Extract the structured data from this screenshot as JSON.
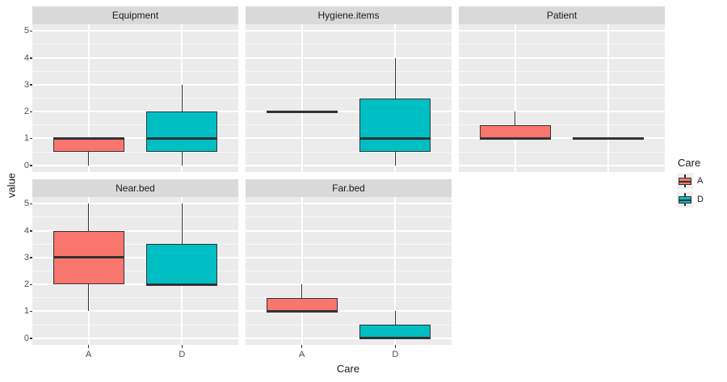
{
  "chart_data": {
    "type": "boxplot",
    "faceted": true,
    "xlabel": "Care",
    "ylabel": "value",
    "x_categories": [
      "A",
      "D"
    ],
    "y_ticks": [
      0,
      1,
      2,
      3,
      4,
      5
    ],
    "y_range": [
      -0.25,
      5.25
    ],
    "grid": "major-and-minor-horizontal, major-vertical-at-categories",
    "legend": {
      "title": "Care",
      "position": "right",
      "entries": [
        {
          "label": "A",
          "color": "#F8766D"
        },
        {
          "label": "D",
          "color": "#00BFC4"
        }
      ]
    },
    "facets": [
      {
        "name": "Equipment",
        "row": 0,
        "col": 0,
        "boxes": [
          {
            "group": "A",
            "min": 0,
            "q1": 0.5,
            "median": 1,
            "q3": 1,
            "max": 1
          },
          {
            "group": "D",
            "min": 0,
            "q1": 0.5,
            "median": 1,
            "q3": 2,
            "max": 3
          }
        ]
      },
      {
        "name": "Hygiene.items",
        "row": 0,
        "col": 1,
        "boxes": [
          {
            "group": "A",
            "min": 2,
            "q1": 2,
            "median": 2,
            "q3": 2,
            "max": 2
          },
          {
            "group": "D",
            "min": 0,
            "q1": 0.5,
            "median": 1,
            "q3": 2.5,
            "max": 4
          }
        ]
      },
      {
        "name": "Patient",
        "row": 0,
        "col": 2,
        "boxes": [
          {
            "group": "A",
            "min": 1,
            "q1": 1,
            "median": 1,
            "q3": 1.5,
            "max": 2
          },
          {
            "group": "D",
            "min": 1,
            "q1": 1,
            "median": 1,
            "q3": 1,
            "max": 1
          }
        ]
      },
      {
        "name": "Near.bed",
        "row": 1,
        "col": 0,
        "boxes": [
          {
            "group": "A",
            "min": 1,
            "q1": 2,
            "median": 3,
            "q3": 4,
            "max": 5
          },
          {
            "group": "D",
            "min": 2,
            "q1": 2,
            "median": 2,
            "q3": 3.5,
            "max": 5
          }
        ]
      },
      {
        "name": "Far.bed",
        "row": 1,
        "col": 1,
        "boxes": [
          {
            "group": "A",
            "min": 1,
            "q1": 1,
            "median": 1,
            "q3": 1.5,
            "max": 2
          },
          {
            "group": "D",
            "min": 0,
            "q1": 0,
            "median": 0,
            "q3": 0.5,
            "max": 1
          }
        ]
      }
    ],
    "colors": {
      "fill_A": "#F8766D",
      "fill_D": "#00BFC4",
      "panel_bg": "#EBEBEB",
      "strip_bg": "#D9D9D9",
      "gridline": "#FFFFFF",
      "box_stroke": "#333333",
      "tick_text": "#4D4D4D",
      "title_text": "#1A1A1A",
      "legend_key_bg": "#F0F0F0"
    }
  }
}
